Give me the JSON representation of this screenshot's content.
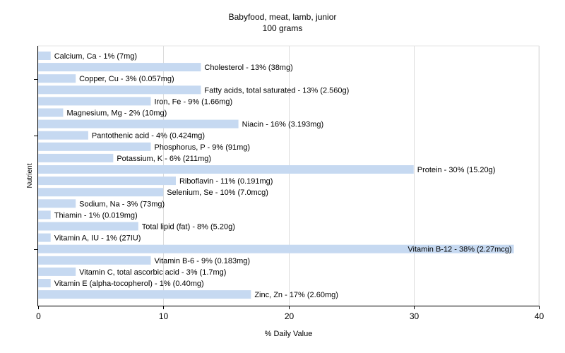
{
  "chart_data": {
    "type": "bar",
    "orientation": "horizontal",
    "title": "Babyfood, meat, lamb, junior",
    "subtitle": "100 grams",
    "xlabel": "% Daily Value",
    "ylabel": "Nutrient",
    "xlim": [
      0,
      40
    ],
    "xticks": [
      0,
      10,
      20,
      30,
      40
    ],
    "grid": true,
    "bar_color": "#c6d9f1",
    "categories": [
      "Calcium, Ca - 1% (7mg)",
      "Cholesterol - 13% (38mg)",
      "Copper, Cu - 3% (0.057mg)",
      "Fatty acids, total saturated - 13% (2.560g)",
      "Iron, Fe - 9% (1.66mg)",
      "Magnesium, Mg - 2% (10mg)",
      "Niacin - 16% (3.193mg)",
      "Pantothenic acid - 4% (0.424mg)",
      "Phosphorus, P - 9% (91mg)",
      "Potassium, K - 6% (211mg)",
      "Protein - 30% (15.20g)",
      "Riboflavin - 11% (0.191mg)",
      "Selenium, Se - 10% (7.0mcg)",
      "Sodium, Na - 3% (73mg)",
      "Thiamin - 1% (0.019mg)",
      "Total lipid (fat) - 8% (5.20g)",
      "Vitamin A, IU - 1% (27IU)",
      "Vitamin B-12 - 38% (2.27mcg)",
      "Vitamin B-6 - 9% (0.183mg)",
      "Vitamin C, total ascorbic acid - 3% (1.7mg)",
      "Vitamin E (alpha-tocopherol) - 1% (0.40mg)",
      "Zinc, Zn - 17% (2.60mg)"
    ],
    "values": [
      1,
      13,
      3,
      13,
      9,
      2,
      16,
      4,
      9,
      6,
      30,
      11,
      10,
      3,
      1,
      8,
      1,
      38,
      9,
      3,
      1,
      17
    ]
  }
}
